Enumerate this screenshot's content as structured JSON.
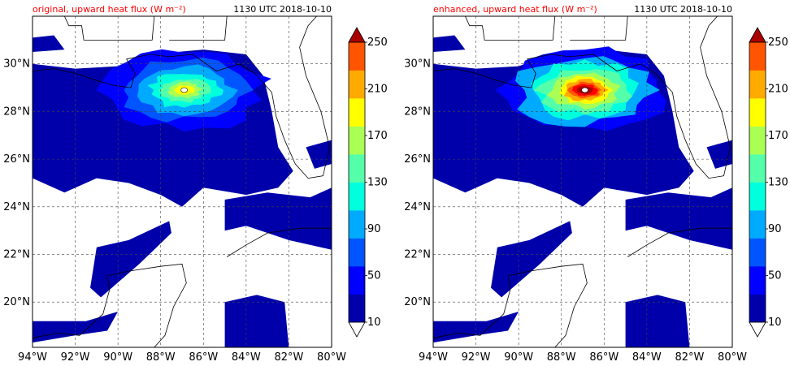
{
  "chart_data": [
    {
      "type": "heatmap",
      "title": "original, upward heat flux (W m⁻²)",
      "timestamp": "1130 UTC 2018-10-10",
      "x_ticks": [
        "94°W",
        "92°W",
        "90°W",
        "88°W",
        "86°W",
        "84°W",
        "82°W",
        "80°W"
      ],
      "y_ticks": [
        "20°N",
        "22°N",
        "24°N",
        "26°N",
        "28°N",
        "30°N"
      ],
      "xlim": [
        -94,
        -80
      ],
      "ylim": [
        18.1,
        32
      ],
      "grid": true,
      "hurricane_center": [
        -86.9,
        28.9
      ],
      "peak_flux": 160,
      "colorbar": {
        "levels": [
          "10",
          "50",
          "90",
          "130",
          "170",
          "210",
          "250"
        ],
        "extend": "both"
      }
    },
    {
      "type": "heatmap",
      "title": "enhanced, upward heat flux (W m⁻²)",
      "timestamp": "1130 UTC 2018-10-10",
      "x_ticks": [
        "94°W",
        "92°W",
        "90°W",
        "88°W",
        "86°W",
        "84°W",
        "82°W",
        "80°W"
      ],
      "y_ticks": [
        "20°N",
        "22°N",
        "24°N",
        "26°N",
        "28°N",
        "30°N"
      ],
      "xlim": [
        -94,
        -80
      ],
      "ylim": [
        18.1,
        32
      ],
      "grid": true,
      "hurricane_center": [
        -86.9,
        28.9
      ],
      "peak_flux": 250,
      "colorbar": {
        "levels": [
          "10",
          "50",
          "90",
          "130",
          "170",
          "210",
          "250"
        ],
        "extend": "both"
      }
    }
  ],
  "colors": [
    "#0000aa",
    "#0000ff",
    "#0055ff",
    "#00aaff",
    "#00ffdd",
    "#55ffaa",
    "#aaff55",
    "#ffff00",
    "#ffaa00",
    "#ff5500",
    "#ff0000",
    "#aa0000"
  ]
}
